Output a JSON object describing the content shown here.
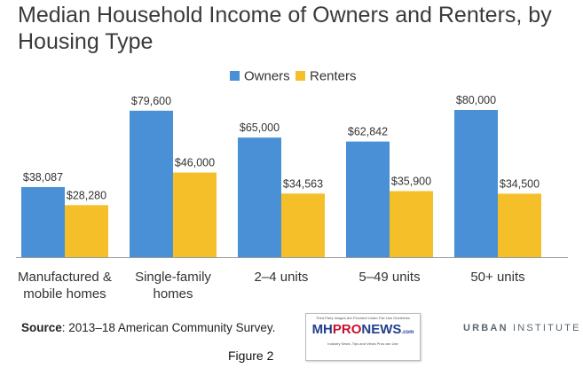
{
  "title": {
    "line1": "Median Household Income of Owners and Renters, by",
    "line2": "Housing Type"
  },
  "chart_data": {
    "type": "bar",
    "categories": [
      [
        "Manufactured &",
        "mobile homes"
      ],
      [
        "Single-family",
        "homes"
      ],
      [
        "2–4 units"
      ],
      [
        "5–49 units"
      ],
      [
        "50+ units"
      ]
    ],
    "series": [
      {
        "name": "Owners",
        "color": "#4a90d6",
        "values": [
          38087,
          79600,
          65000,
          62842,
          80000
        ],
        "labels": [
          "$38,087",
          "$79,600",
          "$65,000",
          "$62,842",
          "$80,000"
        ]
      },
      {
        "name": "Renters",
        "color": "#f5bf2a",
        "values": [
          28280,
          46000,
          34563,
          35900,
          34500
        ],
        "labels": [
          "$28,280",
          "$46,000",
          "$34,563",
          "$35,900",
          "$34,500"
        ]
      }
    ],
    "ylim": [
      0,
      80000
    ],
    "grid": false,
    "legend": "top-center"
  },
  "source": {
    "label": "Source",
    "text": ": 2013–18 American Community Survey."
  },
  "figure_caption": "Figure 2",
  "branding": {
    "urban_bold": "URBAN",
    "urban_thin": "INSTITUTE",
    "logo_top": "Third Party Images Are Provided Under Fair Use Guidelines",
    "logo_mh": "MH",
    "logo_pro": "PRO",
    "logo_news": "NEWS",
    "logo_com": ".com",
    "logo_sub": "Industry News, Tips and Views Pros can Use"
  }
}
